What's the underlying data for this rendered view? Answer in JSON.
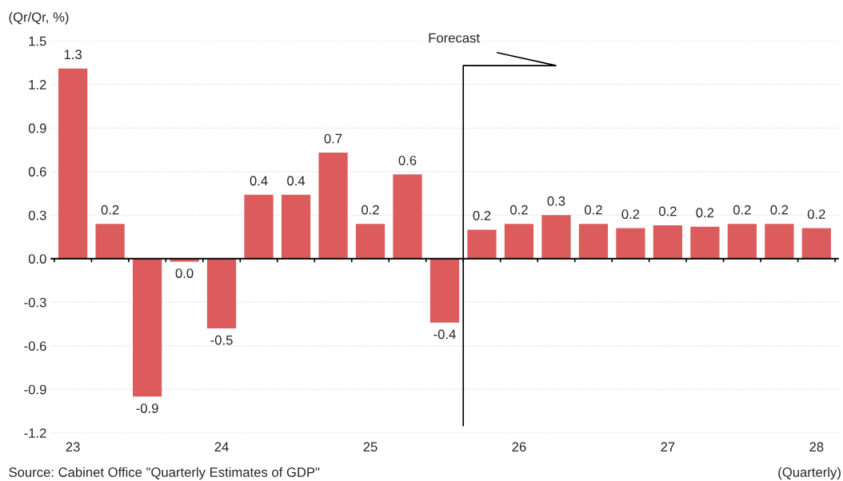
{
  "chart_data": {
    "type": "bar",
    "ylabel": "(Qr/Qr, %)",
    "xlabel": "(Quarterly)",
    "categories": [
      "23",
      null,
      null,
      null,
      "24",
      null,
      null,
      null,
      "25",
      null,
      null,
      null,
      "26",
      null,
      null,
      null,
      "27",
      null,
      null,
      null,
      "28"
    ],
    "values": [
      1.31,
      0.24,
      -0.95,
      -0.02,
      -0.48,
      0.44,
      0.44,
      0.73,
      0.24,
      0.58,
      -0.44,
      0.2,
      0.24,
      0.3,
      0.24,
      0.21,
      0.23,
      0.22,
      0.24,
      0.24,
      0.21
    ],
    "value_labels": [
      "1.3",
      "0.2",
      "-0.9",
      "0.0",
      "-0.5",
      "0.4",
      "0.4",
      "0.7",
      "0.2",
      "0.6",
      "-0.4",
      "0.2",
      "0.2",
      "0.3",
      "0.2",
      "0.2",
      "0.2",
      "0.2",
      "0.2",
      "0.2",
      "0.2"
    ],
    "color": "#dc5c5e",
    "ylim": [
      -1.2,
      1.5
    ],
    "yticks": [
      {
        "value": -1.2,
        "label": "-1.2"
      },
      {
        "value": -0.9,
        "label": "-0.9"
      },
      {
        "value": -0.6,
        "label": "-0.6"
      },
      {
        "value": -0.3,
        "label": "-0.3"
      },
      {
        "value": 0,
        "label": "0.0"
      },
      {
        "value": 0.3,
        "label": "0.3"
      },
      {
        "value": 0.6,
        "label": "0.6"
      },
      {
        "value": 0.9,
        "label": "0.9"
      },
      {
        "value": 1.2,
        "label": "1.2"
      },
      {
        "value": 1.5,
        "label": "1.5"
      }
    ],
    "grid": "y",
    "annotations": [
      "Forecast",
      "Source: Cabinet Office \"Quarterly Estimates of GDP\""
    ]
  }
}
